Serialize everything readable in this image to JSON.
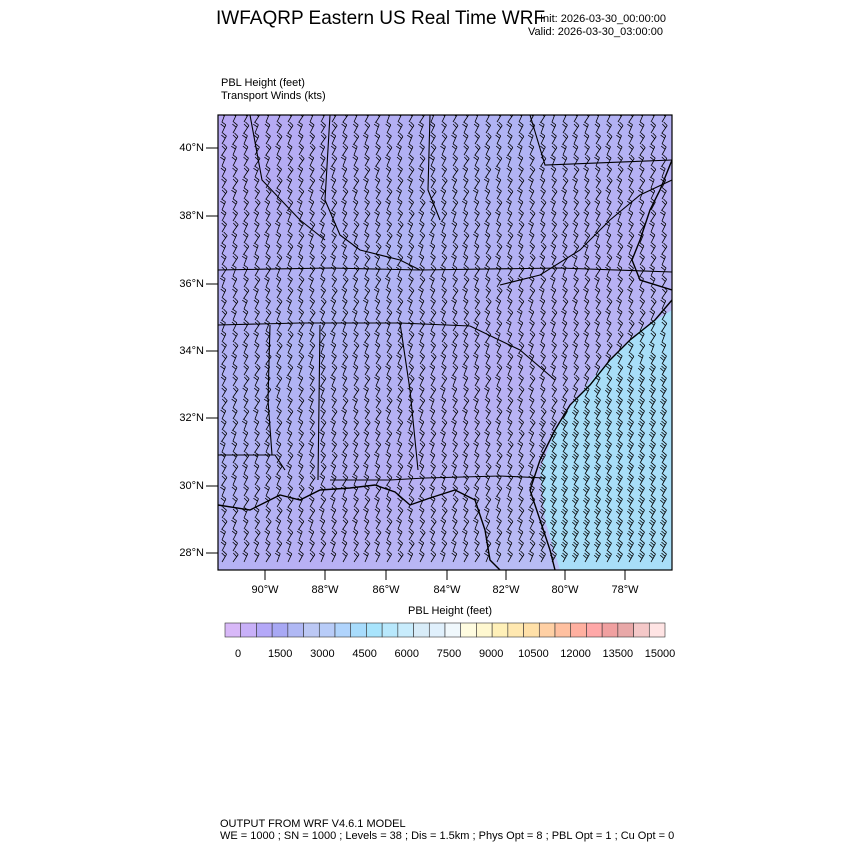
{
  "header": {
    "title": "IWFAQRP Eastern US Real Time WRF",
    "init": "Init: 2026-03-30_00:00:00",
    "valid": "Valid: 2026-03-30_03:00:00"
  },
  "plot_labels": {
    "field1": "PBL Height   (feet)",
    "field2": "Transport Winds   (kts)"
  },
  "map": {
    "lat_ticks": [
      "40°N",
      "38°N",
      "36°N",
      "34°N",
      "32°N",
      "30°N",
      "28°N"
    ],
    "lon_ticks": [
      "90°W",
      "88°W",
      "86°W",
      "84°W",
      "82°W",
      "80°W",
      "78°W"
    ],
    "background_colors": {
      "dominant": "#b4b0f4",
      "southeast_offshore": "#a8e0fc"
    },
    "overlays": [
      "state-boundaries",
      "county-boundaries",
      "coastlines",
      "wind-barbs"
    ]
  },
  "colorbar": {
    "title": "PBL Height  (feet)",
    "labels": [
      "0",
      "1500",
      "3000",
      "4500",
      "6000",
      "7500",
      "9000",
      "10500",
      "12000",
      "13500",
      "15000"
    ],
    "colors": [
      "#d8b8f8",
      "#c8b0f8",
      "#b4a8f8",
      "#a8a8f4",
      "#b0b8f4",
      "#bcc8f4",
      "#b8ccf8",
      "#b0d4fc",
      "#a8dcfc",
      "#a8e4fc",
      "#b8e8fc",
      "#c8ecfc",
      "#d8ecf8",
      "#e0f0fc",
      "#f0f8fc",
      "#fffce0",
      "#fff8d0",
      "#fff0b8",
      "#ffe8b0",
      "#ffe0a8",
      "#ffd0a4",
      "#ffc0a0",
      "#ffb0a0",
      "#ffa8a8",
      "#f0a0a0",
      "#e8a8a8",
      "#f4c8c8",
      "#ffe4e4"
    ]
  },
  "footer": {
    "line1": "OUTPUT FROM WRF V4.6.1 MODEL",
    "line2": "WE = 1000 ; SN = 1000 ; Levels = 38 ; Dis = 1.5km ; Phys Opt = 8 ; PBL Opt = 1 ; Cu Opt = 0"
  }
}
